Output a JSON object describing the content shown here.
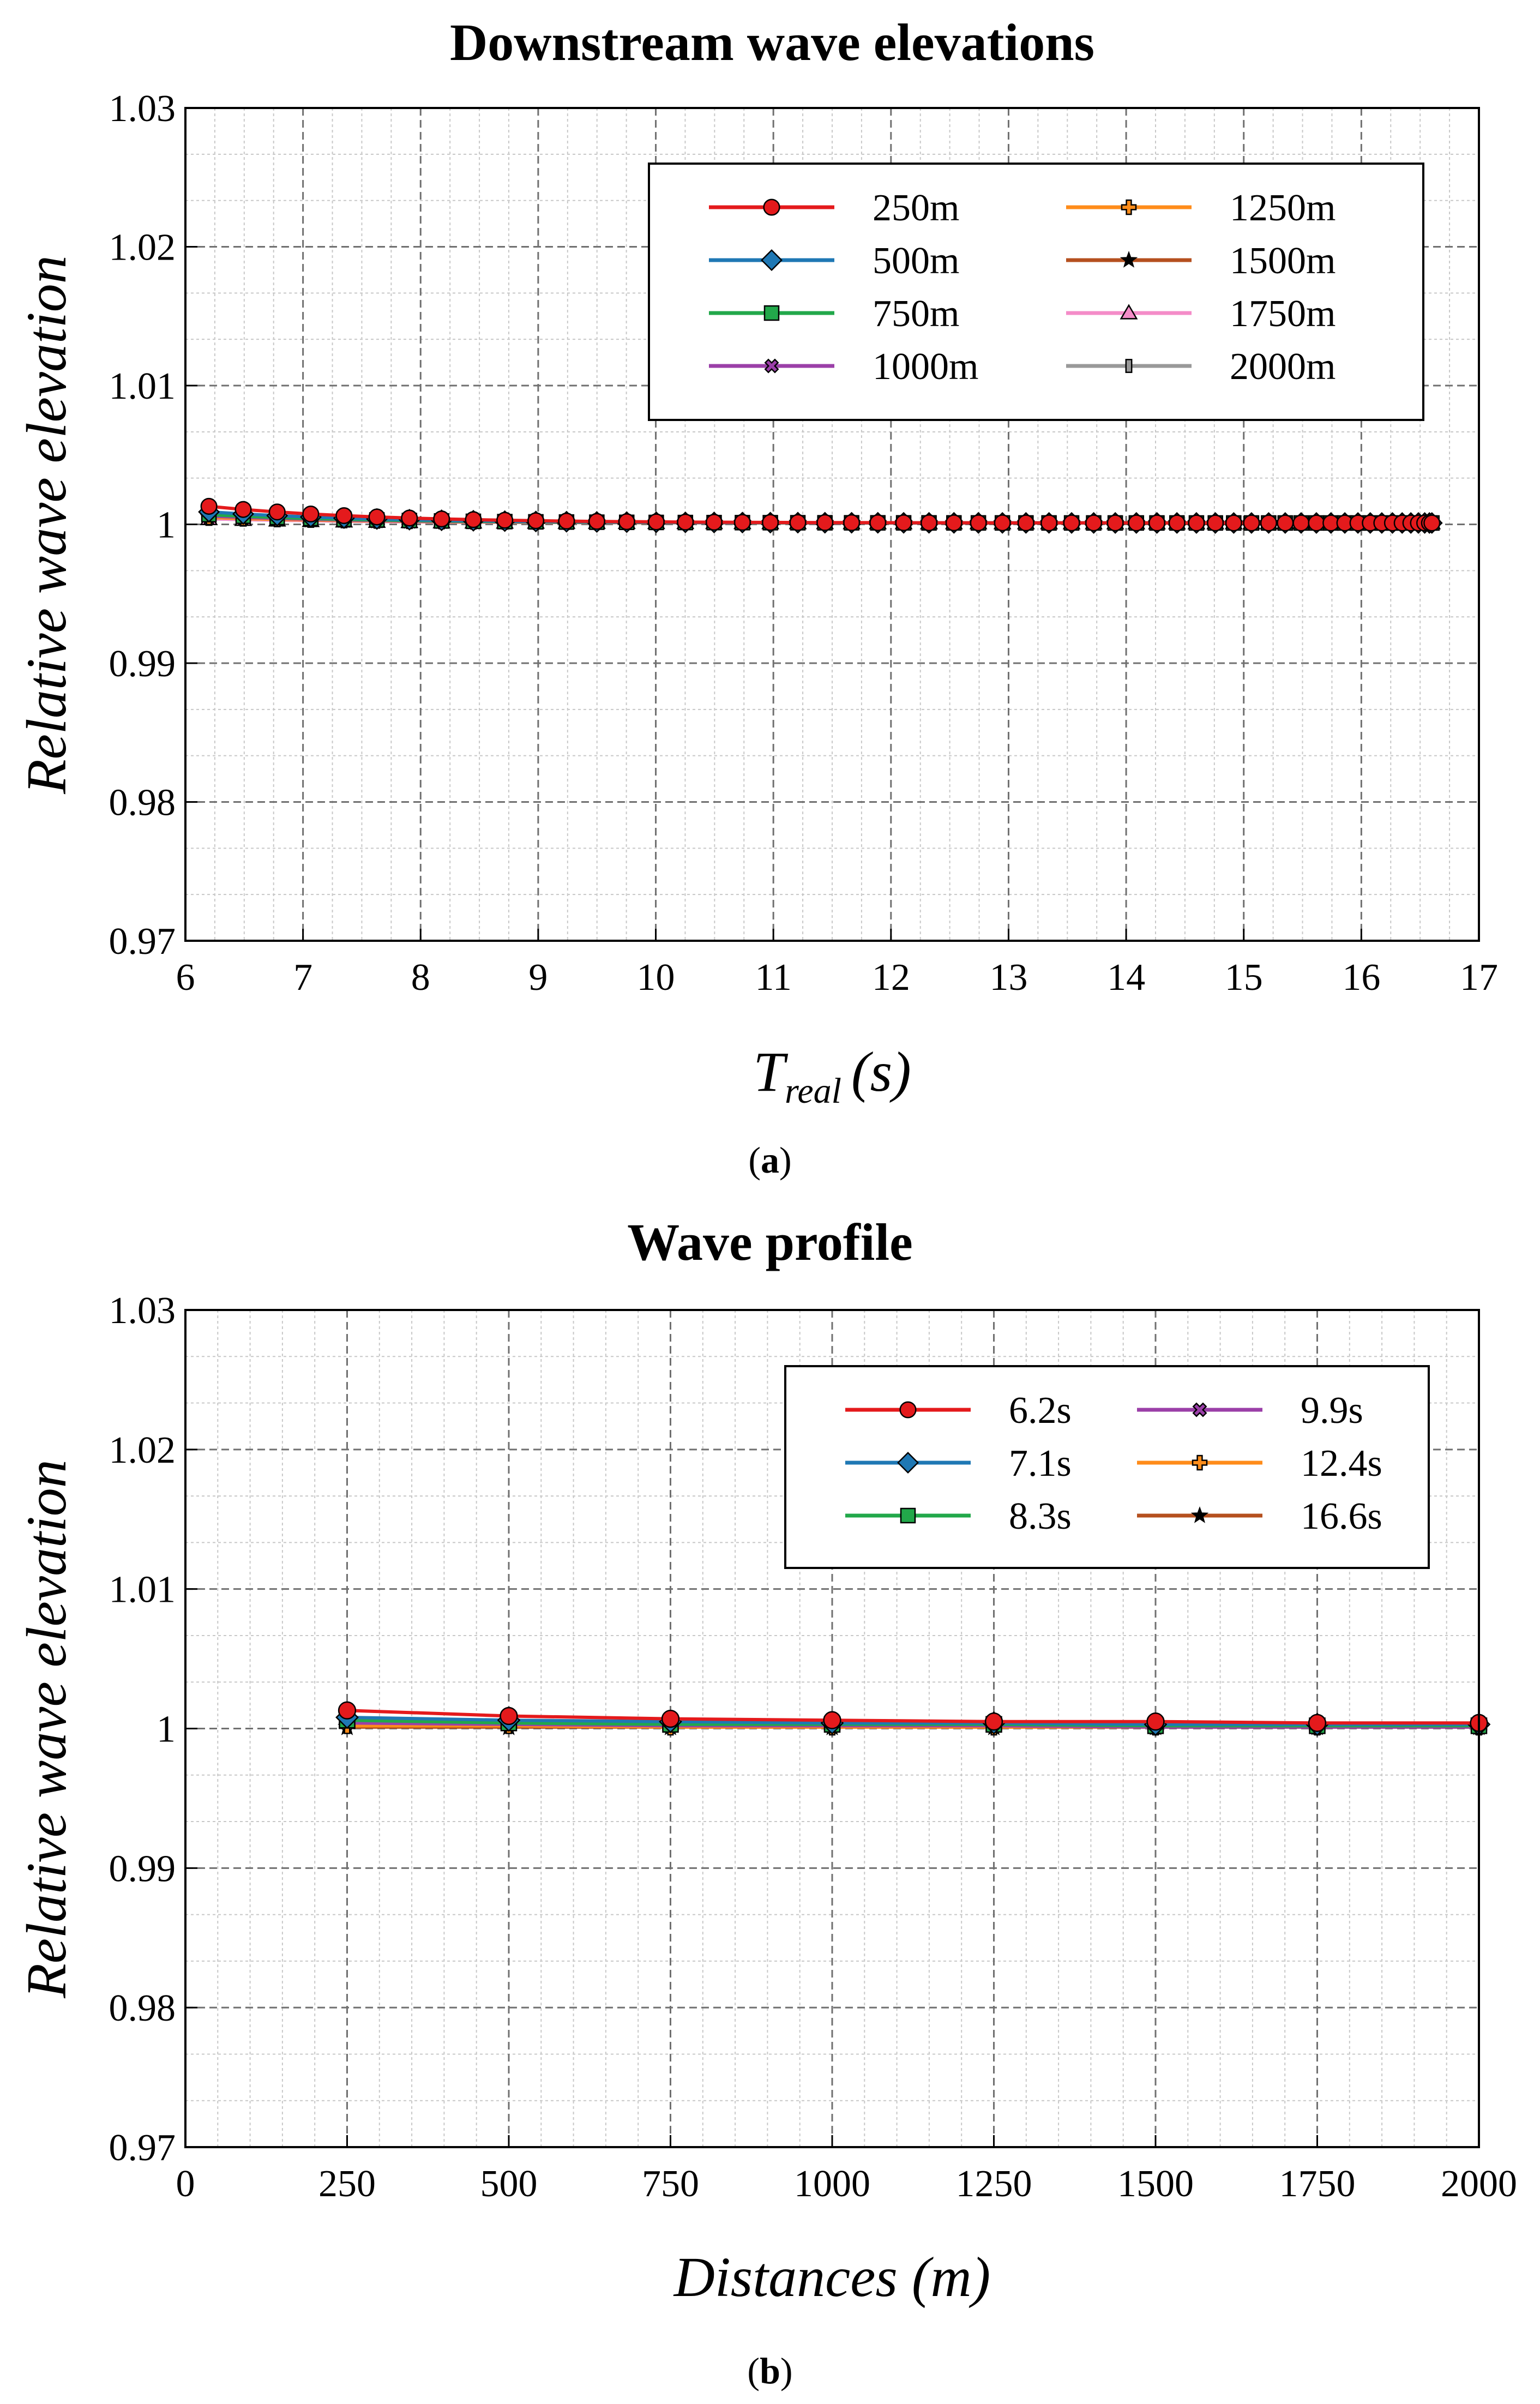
{
  "chart_data": [
    {
      "type": "line",
      "title": "Downstream wave elevations",
      "xlabel": "T",
      "xlabel_sub": "real",
      "xlabel_unit": "(s)",
      "ylabel": "Relative wave elevation",
      "caption_letter": "a",
      "caption_open": "(",
      "caption_close": ")",
      "xlim": [
        6,
        17
      ],
      "ylim": [
        0.97,
        1.03
      ],
      "xticks": [
        6,
        7,
        8,
        9,
        10,
        11,
        12,
        13,
        14,
        15,
        16,
        17
      ],
      "yticks": [
        0.97,
        0.98,
        0.99,
        1.0,
        1.01,
        1.02,
        1.03
      ],
      "ytick_labels": [
        "0.97",
        "0.98",
        "0.99",
        "1",
        "1.01",
        "1.02",
        "1.03"
      ],
      "grid": true,
      "legend_position": "top-right",
      "legend_columns": 2,
      "series": [
        {
          "name": "250m",
          "color": "#e41a1c",
          "marker": "circle",
          "values_start": 1.0013,
          "values_end": 1.0001
        },
        {
          "name": "500m",
          "color": "#1f78b4",
          "marker": "diamond",
          "values_start": 1.0009,
          "values_end": 1.0001
        },
        {
          "name": "750m",
          "color": "#22a84a",
          "marker": "square",
          "values_start": 1.0007,
          "values_end": 1.0001
        },
        {
          "name": "1000m",
          "color": "#9b3fa8",
          "marker": "x-box",
          "values_start": 1.0006,
          "values_end": 1.0001
        },
        {
          "name": "1250m",
          "color": "#ff8c1a",
          "marker": "plus-box",
          "values_start": 1.0005,
          "values_end": 1.0001
        },
        {
          "name": "1500m",
          "color": "#b5501f",
          "marker": "star",
          "values_start": 1.0005,
          "values_end": 1.0001
        },
        {
          "name": "1750m",
          "color": "#f48cc8",
          "marker": "triangle",
          "values_start": 1.0004,
          "values_end": 1.0001
        },
        {
          "name": "2000m",
          "color": "#999999",
          "marker": "bar",
          "values_start": 1.0004,
          "values_end": 1.0001
        }
      ],
      "x_start": 6.2,
      "x_end": 16.6,
      "n_points": 56
    },
    {
      "type": "line",
      "title": "Wave profile",
      "xlabel": "Distances (m)",
      "ylabel": "Relative wave elevation",
      "caption_letter": "b",
      "caption_open": "(",
      "caption_close": ")",
      "xlim": [
        0,
        2000
      ],
      "ylim": [
        0.97,
        1.03
      ],
      "xticks": [
        0,
        250,
        500,
        750,
        1000,
        1250,
        1500,
        1750,
        2000
      ],
      "yticks": [
        0.97,
        0.98,
        0.99,
        1.0,
        1.01,
        1.02,
        1.03
      ],
      "ytick_labels": [
        "0.97",
        "0.98",
        "0.99",
        "1",
        "1.01",
        "1.02",
        "1.03"
      ],
      "grid": true,
      "legend_position": "top-right",
      "legend_columns": 2,
      "x": [
        250,
        500,
        750,
        1000,
        1250,
        1500,
        1750,
        2000
      ],
      "series": [
        {
          "name": "6.2s",
          "color": "#e41a1c",
          "marker": "circle",
          "values": [
            1.0013,
            1.0009,
            1.0007,
            1.0006,
            1.0005,
            1.0005,
            1.0004,
            1.0004
          ]
        },
        {
          "name": "7.1s",
          "color": "#1f78b4",
          "marker": "diamond",
          "values": [
            1.0008,
            1.0006,
            1.0005,
            1.0004,
            1.0004,
            1.0003,
            1.0003,
            1.0003
          ]
        },
        {
          "name": "8.3s",
          "color": "#22a84a",
          "marker": "square",
          "values": [
            1.0006,
            1.0004,
            1.0003,
            1.0003,
            1.0003,
            1.0002,
            1.0002,
            1.0002
          ]
        },
        {
          "name": "9.9s",
          "color": "#9b3fa8",
          "marker": "x-box",
          "values": [
            1.0004,
            1.0003,
            1.0002,
            1.0002,
            1.0002,
            1.0001,
            1.0001,
            1.0001
          ]
        },
        {
          "name": "12.4s",
          "color": "#ff8c1a",
          "marker": "plus-box",
          "values": [
            1.0002,
            1.0002,
            1.0001,
            1.0001,
            1.0001,
            1.0001,
            1.0001,
            1.0001
          ]
        },
        {
          "name": "16.6s",
          "color": "#b5501f",
          "marker": "star",
          "values": [
            1.0001,
            1.0001,
            1.0001,
            1.0001,
            1.0001,
            1.0001,
            1.0001,
            1.0001
          ]
        }
      ]
    }
  ]
}
